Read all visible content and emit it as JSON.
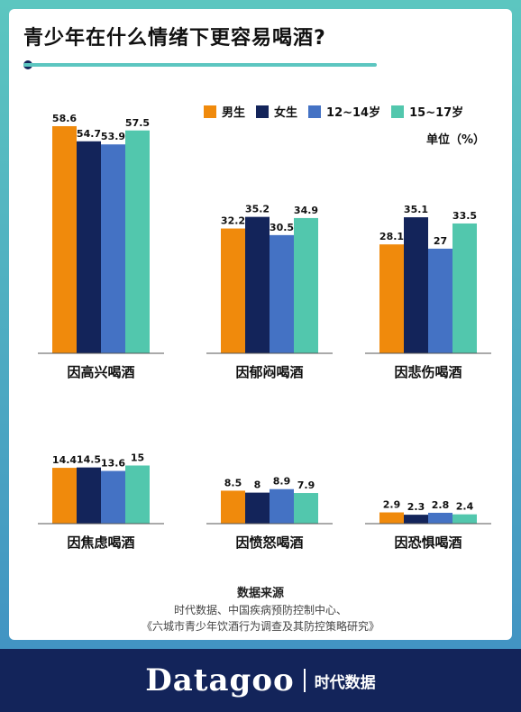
{
  "title": "青少年在什么情绪下更容易喝酒?",
  "legend": [
    {
      "label": "男生",
      "color": "#f08a0c"
    },
    {
      "label": "女生",
      "color": "#13245a"
    },
    {
      "label": "12~14岁",
      "color": "#4472c4"
    },
    {
      "label": "15~17岁",
      "color": "#52c7ad"
    }
  ],
  "unit": "单位（%）",
  "source": {
    "title": "数据来源",
    "line1": "时代数据、中国疾病预防控制中心、",
    "line2": "《六城市青少年饮酒行为调查及其防控策略研究》"
  },
  "footer": {
    "brand": "Datagoo",
    "brand_cn": "时代数据"
  },
  "chart_data": {
    "type": "bar",
    "title": "青少年在什么情绪下更容易喝酒?",
    "unit": "%",
    "categories": [
      "因高兴喝酒",
      "因郁闷喝酒",
      "因悲伤喝酒",
      "因焦虑喝酒",
      "因愤怒喝酒",
      "因恐惧喝酒"
    ],
    "series": [
      {
        "name": "男生",
        "values": [
          58.6,
          32.2,
          28.1,
          14.4,
          8.5,
          2.9
        ]
      },
      {
        "name": "女生",
        "values": [
          54.7,
          35.2,
          35.1,
          14.5,
          8,
          2.3
        ]
      },
      {
        "name": "12~14岁",
        "values": [
          53.9,
          30.5,
          27,
          13.6,
          8.9,
          2.8
        ]
      },
      {
        "name": "15~17岁",
        "values": [
          57.5,
          34.9,
          33.5,
          15,
          7.9,
          2.4
        ]
      }
    ],
    "value_labels": [
      [
        "58.6",
        "54.7",
        "53.9",
        "57.5"
      ],
      [
        "32.2",
        "35.2",
        "30.5",
        "34.9"
      ],
      [
        "28.1",
        "35.1",
        "27",
        "33.5"
      ],
      [
        "14.4",
        "14.5",
        "13.6",
        "15"
      ],
      [
        "8.5",
        "8",
        "8.9",
        "7.9"
      ],
      [
        "2.9",
        "2.3",
        "2.8",
        "2.4"
      ]
    ],
    "legend_position": "top-right",
    "grid": false
  }
}
